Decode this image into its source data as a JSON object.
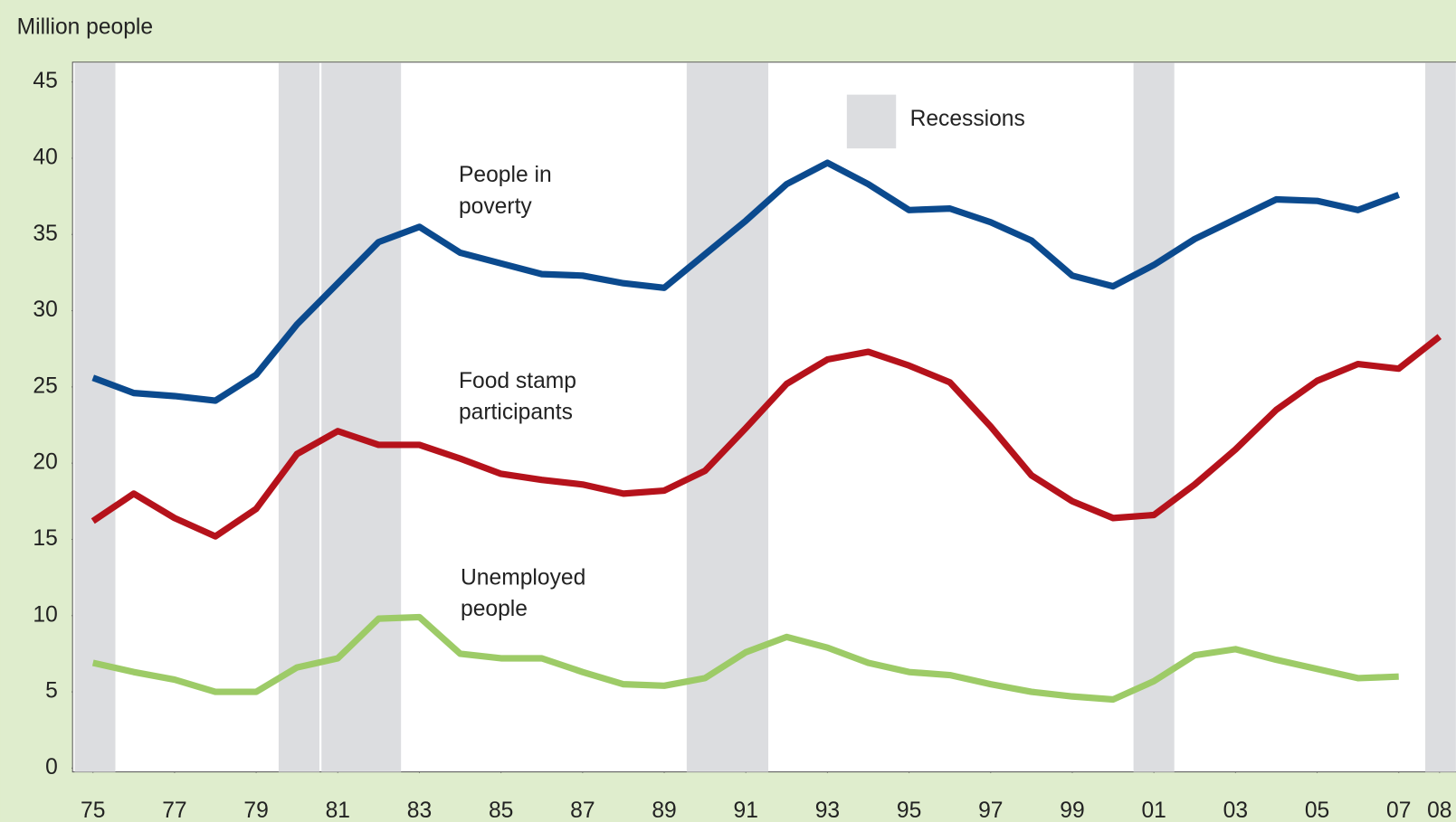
{
  "chart_data": {
    "type": "line",
    "y_label": "Million people",
    "x": [
      1975,
      1976,
      1977,
      1978,
      1979,
      1980,
      1981,
      1982,
      1983,
      1984,
      1985,
      1986,
      1987,
      1988,
      1989,
      1990,
      1991,
      1992,
      1993,
      1994,
      1995,
      1996,
      1997,
      1998,
      1999,
      2000,
      2001,
      2002,
      2003,
      2004,
      2005,
      2006,
      2007,
      2008
    ],
    "series": [
      {
        "name": "People in poverty",
        "color": "#0b4a8e",
        "values": [
          25.6,
          24.6,
          24.4,
          24.1,
          25.8,
          29.1,
          31.8,
          34.5,
          35.5,
          33.8,
          33.1,
          32.4,
          32.3,
          31.8,
          31.5,
          33.7,
          35.9,
          38.3,
          39.7,
          38.3,
          36.6,
          36.7,
          35.8,
          34.6,
          32.3,
          31.6,
          33.0,
          34.7,
          36.0,
          37.3,
          37.2,
          36.6,
          37.6,
          null
        ]
      },
      {
        "name": "Food stamp participants",
        "color": "#b5121b",
        "values": [
          16.2,
          18.0,
          16.4,
          15.2,
          17.0,
          20.6,
          22.1,
          21.2,
          21.2,
          20.3,
          19.3,
          18.9,
          18.6,
          18.0,
          18.2,
          19.5,
          22.3,
          25.2,
          26.8,
          27.3,
          26.4,
          25.3,
          22.4,
          19.2,
          17.5,
          16.4,
          16.6,
          18.6,
          20.9,
          23.5,
          25.4,
          26.5,
          26.2,
          28.3
        ]
      },
      {
        "name": "Unemployed people",
        "color": "#9dcb67",
        "values": [
          6.9,
          6.3,
          5.8,
          5.0,
          5.0,
          6.6,
          7.2,
          9.8,
          9.9,
          7.5,
          7.2,
          7.2,
          6.3,
          5.5,
          5.4,
          5.9,
          7.6,
          8.6,
          7.9,
          6.9,
          6.3,
          6.1,
          5.5,
          5.0,
          4.7,
          4.5,
          5.7,
          7.4,
          7.8,
          7.1,
          6.5,
          5.9,
          6.0,
          null
        ]
      }
    ],
    "recessions": [
      [
        1974.55,
        1975.55
      ],
      [
        1979.55,
        1980.55
      ],
      [
        1980.6,
        1982.55
      ],
      [
        1989.55,
        1991.55
      ],
      [
        2000.5,
        2001.5
      ],
      [
        2007.65,
        2008.4
      ]
    ],
    "recession_label": "Recessions",
    "recession_color": "#dcdde0",
    "legend": "top-right",
    "xlim": [
      1974.5,
      2008.4
    ],
    "xticks": [
      {
        "value": 1975,
        "label": "75"
      },
      {
        "value": 1977,
        "label": "77"
      },
      {
        "value": 1979,
        "label": "79"
      },
      {
        "value": 1981,
        "label": "81"
      },
      {
        "value": 1983,
        "label": "83"
      },
      {
        "value": 1985,
        "label": "85"
      },
      {
        "value": 1987,
        "label": "87"
      },
      {
        "value": 1989,
        "label": "89"
      },
      {
        "value": 1991,
        "label": "91"
      },
      {
        "value": 1993,
        "label": "93"
      },
      {
        "value": 1995,
        "label": "95"
      },
      {
        "value": 1997,
        "label": "97"
      },
      {
        "value": 1999,
        "label": "99"
      },
      {
        "value": 2001,
        "label": "01"
      },
      {
        "value": 2003,
        "label": "03"
      },
      {
        "value": 2005,
        "label": "05"
      },
      {
        "value": 2007,
        "label": "07"
      },
      {
        "value": 2008,
        "label": "08"
      }
    ],
    "ylim": [
      -0.25,
      46.3
    ],
    "yticks": [
      0,
      5,
      10,
      15,
      20,
      25,
      30,
      35,
      40,
      45
    ],
    "grid": false
  }
}
